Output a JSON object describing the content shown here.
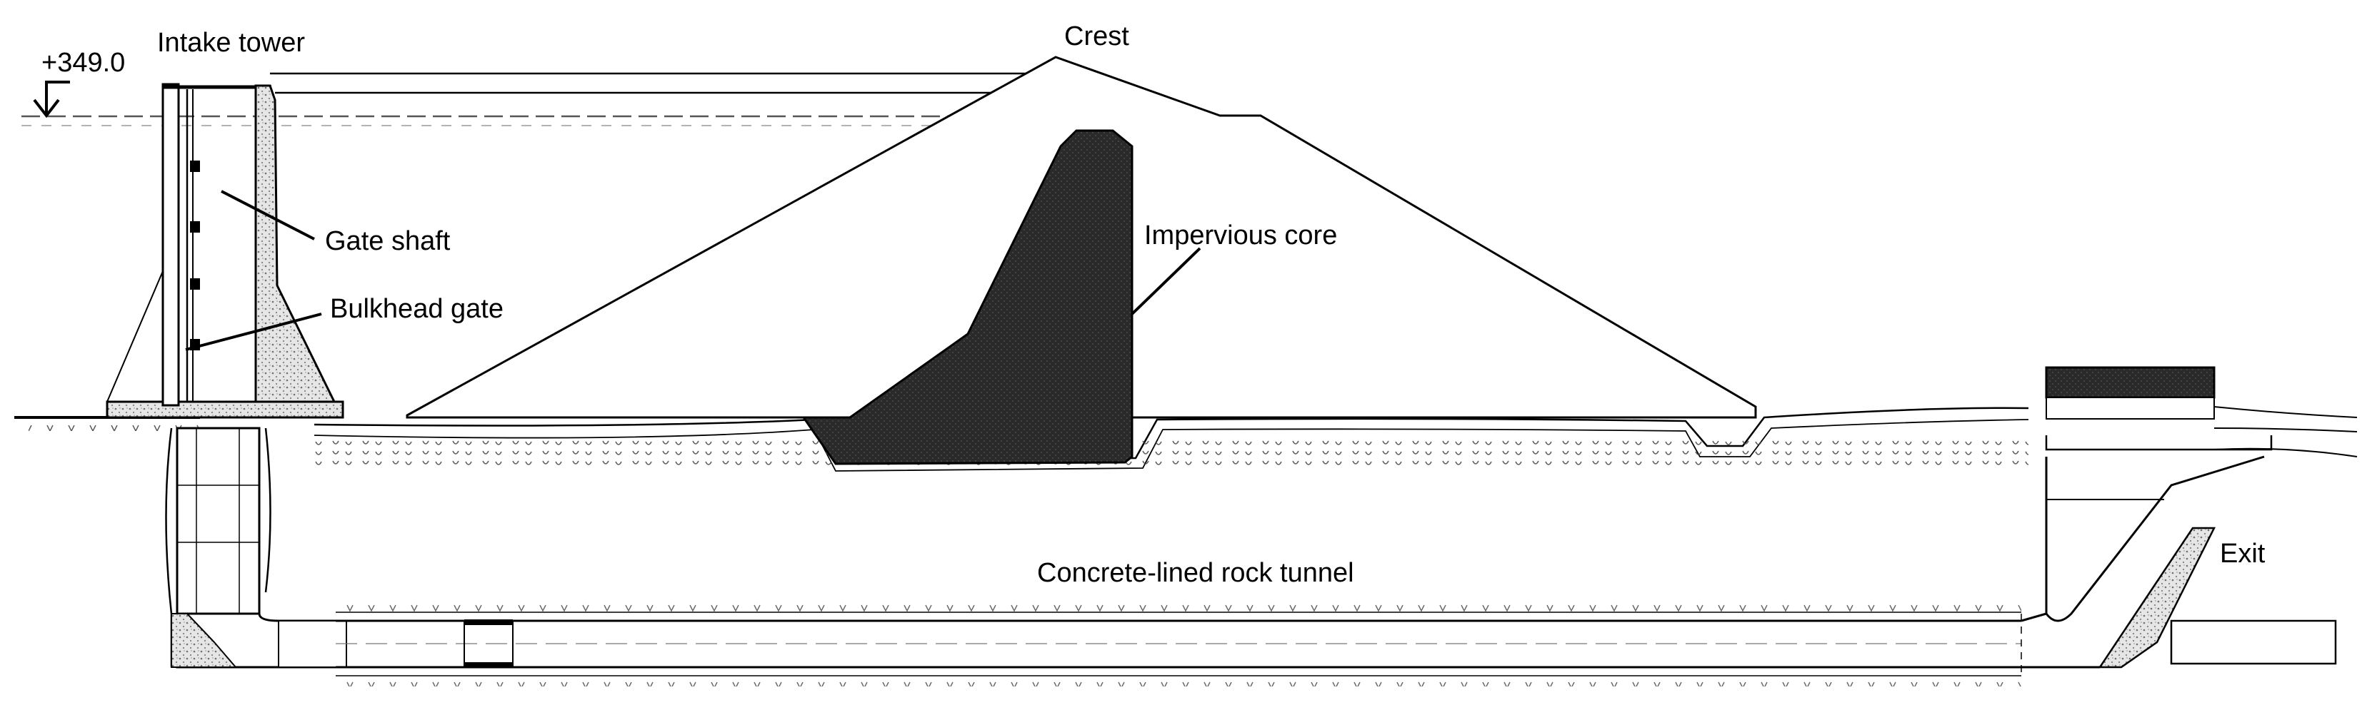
{
  "diagram": {
    "labels": {
      "elevation": "+349.0",
      "intake_tower": "Intake tower",
      "crest": "Crest",
      "gate_shaft": "Gate shaft",
      "impervious_core": "Impervious core",
      "bulkhead_gate": "Bulkhead gate",
      "tunnel": "Concrete-lined rock tunnel",
      "exit": "Exit"
    }
  }
}
